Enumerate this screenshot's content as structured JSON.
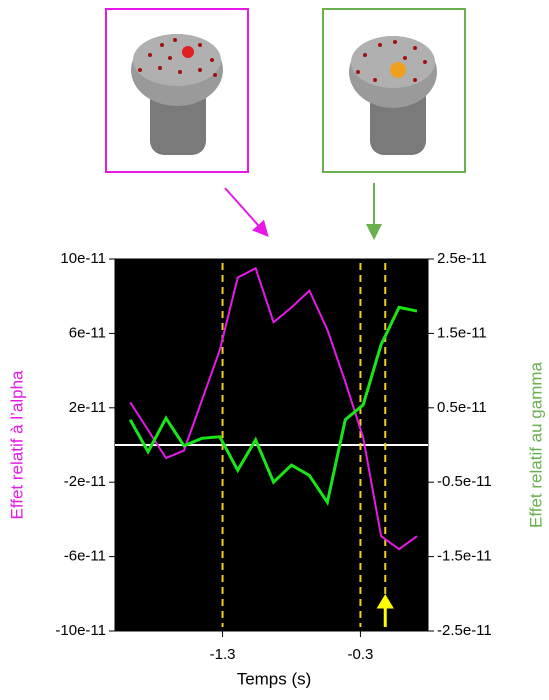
{
  "chart_data": {
    "type": "line",
    "xlabel": "Temps (s)",
    "ylabel": "Effet relatif à l’alpha",
    "y2label": "Effet relatif au gamma",
    "x": [
      -1.97,
      -1.84,
      -1.71,
      -1.58,
      -1.45,
      -1.32,
      -1.19,
      -1.06,
      -0.93,
      -0.8,
      -0.67,
      -0.54,
      -0.41,
      -0.28,
      -0.15,
      -0.02,
      0.11
    ],
    "series": [
      {
        "name": "alpha",
        "color": "#e619e6",
        "values": [
          2.3e-11,
          8e-12,
          -7e-12,
          -3e-12,
          2.4e-11,
          5.1e-11,
          9e-11,
          9.5e-11,
          6.6e-11,
          7.4e-11,
          8.3e-11,
          6.2e-11,
          3.4e-11,
          4e-12,
          -4.9e-11,
          -5.6e-11,
          -4.9e-11
        ]
      },
      {
        "name": "gamma",
        "color": "#19e619",
        "axis": "y2",
        "values": [
          3.4e-12,
          -9e-13,
          3.6e-12,
          -1e-13,
          9e-13,
          1.1e-12,
          -3.4e-12,
          7e-13,
          -5e-12,
          -2.7e-12,
          -4.1e-12,
          -7.7e-12,
          3.4e-12,
          5.4e-12,
          1.35e-11,
          1.85e-11,
          1.8e-11
        ]
      }
    ],
    "xlim": [
      -2.08,
      0.19
    ],
    "xticks": [
      -1.3,
      -0.3
    ],
    "ylim": [
      -1e-10,
      1e-10
    ],
    "yticks": [
      {
        "value": -1e-10,
        "label": "-10e-11"
      },
      -6e-11,
      -2e-11,
      2e-11,
      6e-11,
      {
        "value": 1e-10,
        "label": "10e-11"
      }
    ],
    "y2lim": [
      -2.5e-11,
      2.5e-11
    ],
    "y2ticks": [
      -2.5e-11,
      -1.5e-11,
      {
        "value": -5e-12,
        "label": "-0.5e-11"
      },
      {
        "value": 5e-12,
        "label": "0.5e-11"
      },
      1.5e-11,
      2.5e-11
    ],
    "reference_line": 0,
    "vlines": [
      -1.3,
      -0.3,
      -0.12
    ],
    "arrow_x": -0.12,
    "background": "#000000"
  }
}
